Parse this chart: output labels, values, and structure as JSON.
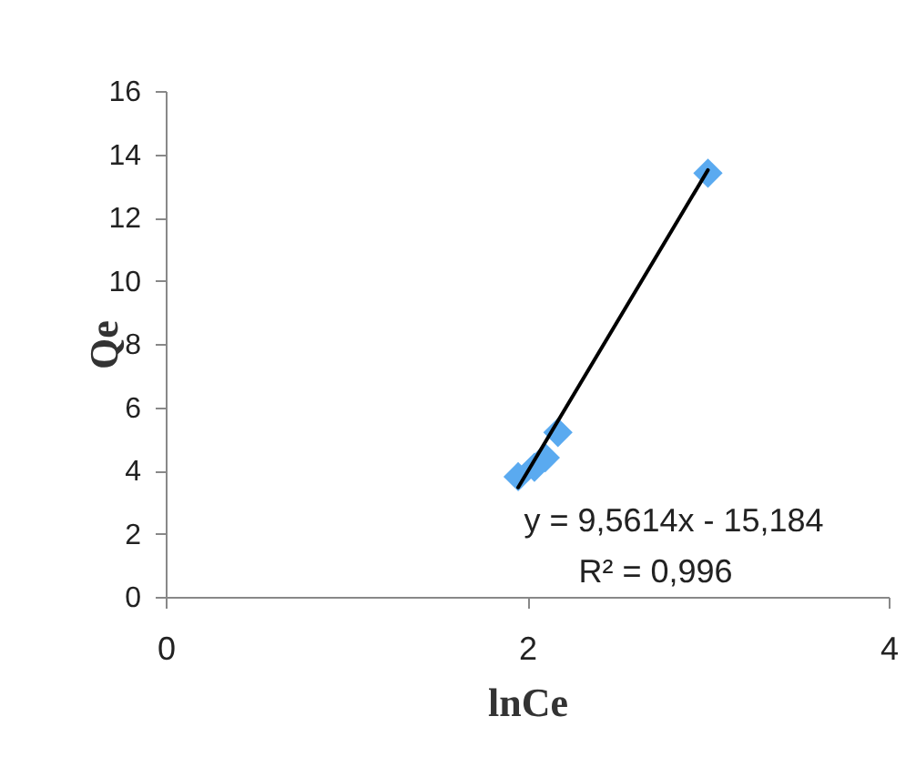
{
  "chart_data": {
    "type": "scatter",
    "xlabel": "lnCe",
    "ylabel": "Qe",
    "xlim": [
      0,
      4
    ],
    "xticks": [
      0,
      2,
      4
    ],
    "ylim": [
      0,
      16
    ],
    "yticks": [
      0,
      2,
      4,
      6,
      8,
      10,
      12,
      14,
      16
    ],
    "grid": false,
    "series": [
      {
        "type": "scatter",
        "marker": "diamond",
        "color": "#5aaaf0",
        "x": [
          1.95,
          2.04,
          2.1,
          2.17,
          3.0
        ],
        "values": [
          3.8,
          4.1,
          4.4,
          5.2,
          13.4
        ]
      },
      {
        "type": "line",
        "marker": "none",
        "color": "#000000",
        "x": [
          1.95,
          3.0
        ],
        "values": [
          3.46,
          13.5
        ]
      }
    ],
    "annotations": [
      "y = 9,5614x - 15,184",
      "R² = 0,996"
    ]
  }
}
